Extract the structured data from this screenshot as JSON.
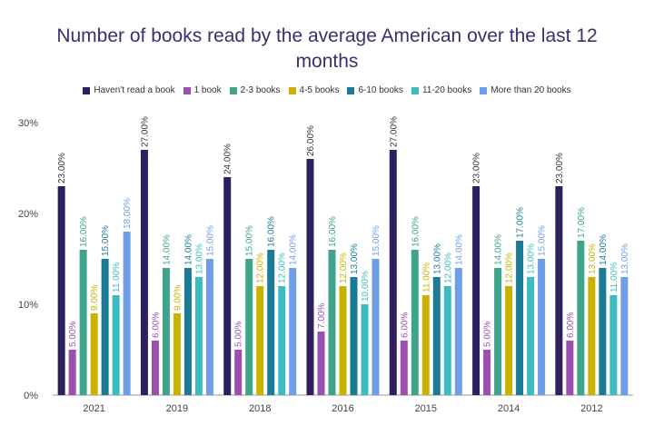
{
  "chart_data": {
    "type": "bar",
    "title_lines": [
      "Number of books read by the average American over the last 12",
      "months"
    ],
    "xlabel": "",
    "ylabel": "",
    "ylim": [
      0,
      30
    ],
    "yticks": [
      "0%",
      "10%",
      "20%",
      "30%"
    ],
    "grid": false,
    "legend_position": "top",
    "categories": [
      "2021",
      "2019",
      "2018",
      "2016",
      "2015",
      "2014",
      "2012"
    ],
    "series": [
      {
        "name": "Haven't read a book",
        "color": "#2e1f5e",
        "values": [
          23,
          27,
          24,
          26,
          27,
          23,
          23
        ]
      },
      {
        "name": "1 book",
        "color": "#9b4fb0",
        "values": [
          5,
          6,
          5,
          7,
          6,
          5,
          6
        ]
      },
      {
        "name": "2-3 books",
        "color": "#3fa58a",
        "values": [
          16,
          14,
          15,
          16,
          16,
          14,
          17
        ]
      },
      {
        "name": "4-5 books",
        "color": "#c9b300",
        "values": [
          9,
          9,
          12,
          12,
          11,
          12,
          13
        ]
      },
      {
        "name": "6-10 books",
        "color": "#1b7a96",
        "values": [
          15,
          14,
          16,
          13,
          13,
          17,
          14
        ]
      },
      {
        "name": "11-20 books",
        "color": "#3cbcc0",
        "values": [
          11,
          13,
          12,
          10,
          12,
          13,
          11
        ]
      },
      {
        "name": "More than 20 books",
        "color": "#6f9de8",
        "values": [
          18,
          15,
          14,
          15,
          14,
          15,
          13
        ]
      }
    ]
  }
}
